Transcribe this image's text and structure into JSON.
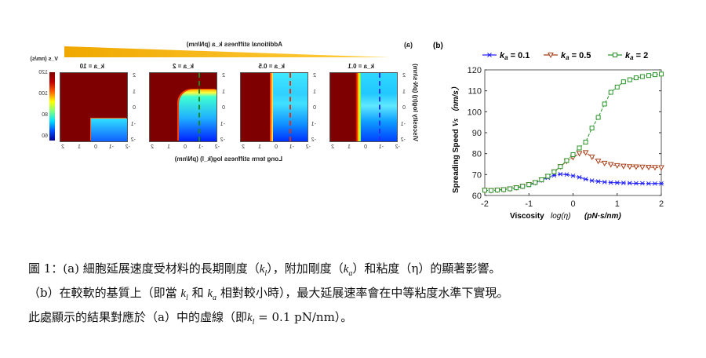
{
  "panel_a": {
    "label": "(a)",
    "top_title": "Additional stiffness  k_a (pN/nm)",
    "colorbar_title": "V_s (nm/s)",
    "colorbar_ticks": [
      "60",
      "80",
      "100",
      "120"
    ],
    "y_label": "Viscosity  log(η) (pN·s/nm)",
    "x_label": "Long term stiffness  log(k_l) (pN/nm)",
    "wedge_color": "#f5b800",
    "ticks": [
      "-2",
      "-1",
      "0",
      "1",
      "2"
    ],
    "panels": [
      {
        "title": "k_a = 0.1",
        "dash_color": "#2030ff"
      },
      {
        "title": "k_a = 0.5",
        "dash_color": "#e03010"
      },
      {
        "title": "k_a = 2",
        "dash_color": "#1a8a1a"
      },
      {
        "title": "k_a = 10",
        "dash_color": ""
      }
    ],
    "mirrored": true
  },
  "chart_data": {
    "label": "(b)",
    "type": "line",
    "xlabel": "Viscosity",
    "xlabel_math": "log(η)",
    "xlabel_units": "(pN·s/nm)",
    "ylabel": "Spreading Speed",
    "ylabel_math": "V_s",
    "ylabel_units": "（nm/s）",
    "xlim": [
      -2,
      2
    ],
    "ylim": [
      60,
      120
    ],
    "xticks": [
      "-2",
      "-1",
      "0",
      "1",
      "2"
    ],
    "yticks": [
      "60",
      "70",
      "80",
      "90",
      "100",
      "110",
      "120"
    ],
    "legend_position": "top",
    "x": [
      -2,
      -1.857,
      -1.714,
      -1.571,
      -1.429,
      -1.286,
      -1.143,
      -1,
      -0.857,
      -0.714,
      -0.571,
      -0.429,
      -0.286,
      -0.143,
      0,
      0.143,
      0.286,
      0.429,
      0.571,
      0.714,
      0.857,
      1,
      1.143,
      1.286,
      1.429,
      1.571,
      1.714,
      1.857,
      2
    ],
    "series": [
      {
        "name": "k_a = 0.1",
        "color": "#2020ff",
        "marker": "asterisk",
        "values": [
          62.5,
          62.4,
          62.6,
          62.8,
          63.2,
          63.6,
          64.2,
          65,
          66,
          67.2,
          68.5,
          69.6,
          70.2,
          70,
          69.4,
          68.7,
          67.8,
          67.1,
          66.7,
          66.4,
          66.2,
          66.1,
          66,
          65.9,
          65.8,
          65.8,
          65.7,
          65.7,
          65.7
        ]
      },
      {
        "name": "k_a = 0.5",
        "color": "#a8401a",
        "marker": "triangle-down",
        "values": [
          62.5,
          62.4,
          62.6,
          62.8,
          63.2,
          63.7,
          64.4,
          65.2,
          66.2,
          67.5,
          69.2,
          71.3,
          73.8,
          76.4,
          78.2,
          80.1,
          80.5,
          78.4,
          76.4,
          75.4,
          74.8,
          74.3,
          74,
          73.8,
          73.7,
          73.6,
          73.5,
          73.4,
          73.3
        ]
      },
      {
        "name": "k_a = 2",
        "color": "#2a952a",
        "marker": "square",
        "values": [
          62.5,
          62.4,
          62.6,
          62.8,
          63.2,
          63.7,
          64.4,
          65.2,
          66.2,
          67.5,
          69.2,
          71.3,
          73.8,
          76.7,
          79.5,
          82.7,
          85.5,
          92.2,
          97.3,
          103.7,
          109.3,
          111.8,
          114.3,
          115.3,
          116.2,
          116.8,
          117.3,
          117.7,
          118
        ]
      }
    ]
  },
  "caption": {
    "line1": [
      "圖 1：(a) 細胞延展速度受材料的長期剛度（",
      "k",
      "l",
      "），附加剛度（",
      "k",
      "a",
      "）和粘度（η）的顯著影響。"
    ],
    "line2": [
      "（b）在較軟的基質上（即當 ",
      "k",
      "l",
      " 和 ",
      "k",
      "a",
      " 相對較小時），最大延展速率會在中等粘度水準下實現。"
    ],
    "line3": [
      "此處顯示的結果對應於（a）中的虛線（即",
      "k",
      "l",
      " = 0.1 pN/nm）。"
    ]
  }
}
